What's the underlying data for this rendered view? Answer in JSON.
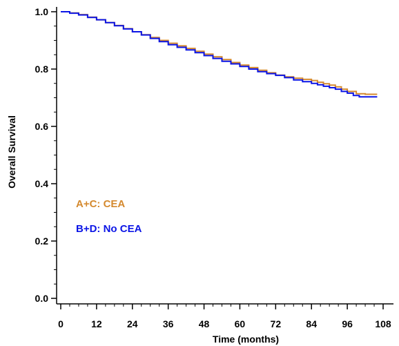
{
  "chart_data": {
    "type": "line",
    "step": true,
    "xlabel": "Time (months)",
    "ylabel": "Overall Survival",
    "xlim": [
      0,
      108
    ],
    "ylim": [
      0.0,
      1.0
    ],
    "x_ticks": [
      "0",
      "12",
      "24",
      "36",
      "48",
      "60",
      "72",
      "84",
      "96",
      "108"
    ],
    "y_ticks": [
      "0.0",
      "0.2",
      "0.4",
      "0.6",
      "0.8",
      "1.0"
    ],
    "grid": false,
    "legend": "inside-left",
    "series": [
      {
        "name": "A+C: CEA",
        "color": "#D4892E",
        "x": [
          0,
          3,
          6,
          9,
          12,
          15,
          18,
          21,
          24,
          27,
          30,
          33,
          36,
          39,
          42,
          45,
          48,
          51,
          54,
          57,
          60,
          63,
          66,
          69,
          72,
          75,
          78,
          81,
          84,
          86,
          88,
          90,
          92,
          94,
          96,
          99,
          102,
          105,
          106
        ],
        "y": [
          1.0,
          0.996,
          0.99,
          0.981,
          0.972,
          0.962,
          0.952,
          0.941,
          0.93,
          0.92,
          0.91,
          0.9,
          0.89,
          0.881,
          0.872,
          0.862,
          0.852,
          0.843,
          0.833,
          0.823,
          0.814,
          0.805,
          0.796,
          0.787,
          0.779,
          0.773,
          0.768,
          0.764,
          0.76,
          0.754,
          0.749,
          0.744,
          0.738,
          0.73,
          0.722,
          0.714,
          0.712,
          0.712,
          0.712
        ]
      },
      {
        "name": "B+D: No CEA",
        "color": "#0A14E6",
        "x": [
          0,
          3,
          6,
          9,
          12,
          15,
          18,
          21,
          24,
          27,
          30,
          33,
          36,
          39,
          42,
          45,
          48,
          51,
          54,
          57,
          60,
          63,
          66,
          69,
          72,
          75,
          78,
          81,
          84,
          86,
          88,
          90,
          92,
          94,
          96,
          98,
          100,
          103,
          106
        ],
        "y": [
          1.0,
          0.995,
          0.989,
          0.98,
          0.972,
          0.962,
          0.951,
          0.94,
          0.93,
          0.919,
          0.907,
          0.896,
          0.885,
          0.876,
          0.867,
          0.857,
          0.847,
          0.837,
          0.827,
          0.818,
          0.809,
          0.8,
          0.791,
          0.784,
          0.778,
          0.77,
          0.762,
          0.756,
          0.75,
          0.745,
          0.74,
          0.735,
          0.73,
          0.722,
          0.716,
          0.708,
          0.703,
          0.703,
          0.703
        ]
      }
    ]
  }
}
